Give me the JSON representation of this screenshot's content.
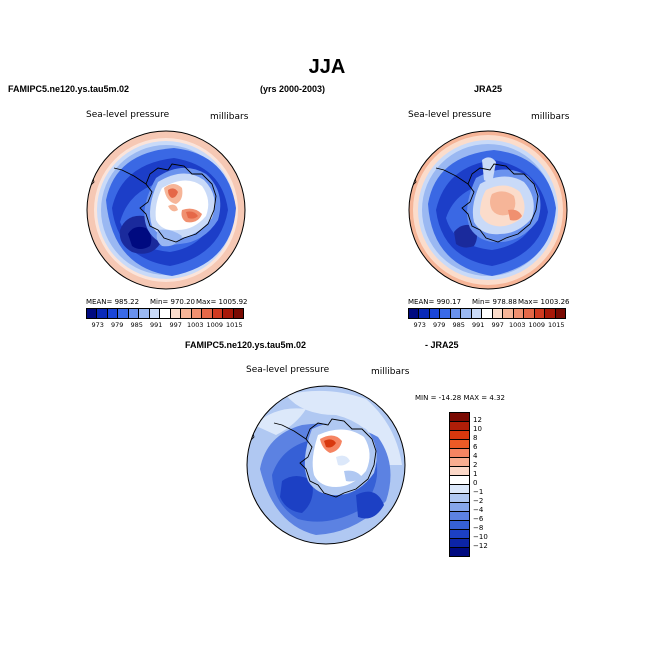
{
  "page_title": "JJA",
  "panels": [
    {
      "header_left": "FAMIPC5.ne120.ys.tau5m.02",
      "header_center": "(yrs 2000-2003)",
      "field": "Sea-level pressure",
      "units": "millibars",
      "stats": {
        "mean": "MEAN= 985.22",
        "min": "Min= 970.20",
        "max": "Max= 1005.92"
      }
    },
    {
      "header_right": "JRA25",
      "field": "Sea-level pressure",
      "units": "millibars",
      "stats": {
        "mean": "MEAN= 990.17",
        "min": "Min= 978.88",
        "max": "Max= 1003.26"
      }
    },
    {
      "header_left": "FAMIPC5.ne120.ys.tau5m.02",
      "header_right": "- JRA25",
      "field": "Sea-level pressure",
      "units": "millibars",
      "stats": {
        "minmax": "MIN = -14.28  MAX =    4.32"
      }
    }
  ],
  "colorbar_abs": {
    "colors": [
      "#000a80",
      "#0a2ab8",
      "#1a46d8",
      "#3a6ae8",
      "#6a92ee",
      "#9ab8f2",
      "#c9daf8",
      "#ffffff",
      "#fbdccb",
      "#f6b598",
      "#f09070",
      "#e56848",
      "#d03a20",
      "#a81808",
      "#7a0a02"
    ],
    "labels": [
      "973",
      "979",
      "985",
      "991",
      "997",
      "1003",
      "1009",
      "1015"
    ]
  },
  "colorbar_diff": {
    "colors": [
      "#7a0a02",
      "#b01e08",
      "#d8380e",
      "#ec5a26",
      "#f58462",
      "#f9ad90",
      "#fcd8c8",
      "#ffffff",
      "#dce8fa",
      "#b0c8f2",
      "#86a6ea",
      "#5c82e2",
      "#3660d6",
      "#1c40c4",
      "#0c24a6",
      "#000a80"
    ],
    "labels": [
      "12",
      "10",
      "8",
      "6",
      "4",
      "2",
      "1",
      "0",
      "−1",
      "−2",
      "−4",
      "−6",
      "−8",
      "−10",
      "−12"
    ]
  },
  "map_colors": {
    "outer_ring": "#f6c8b4",
    "ocean_deep": "#1c3ec8",
    "ocean_mid": "#3a68e4",
    "ocean_light": "#9ab8f2",
    "ocean_pale": "#c9daf8",
    "low_core": "#000a80",
    "plateau_white": "#ffffff",
    "plateau_warm": "#f6b598",
    "plateau_hot": "#e56848"
  }
}
